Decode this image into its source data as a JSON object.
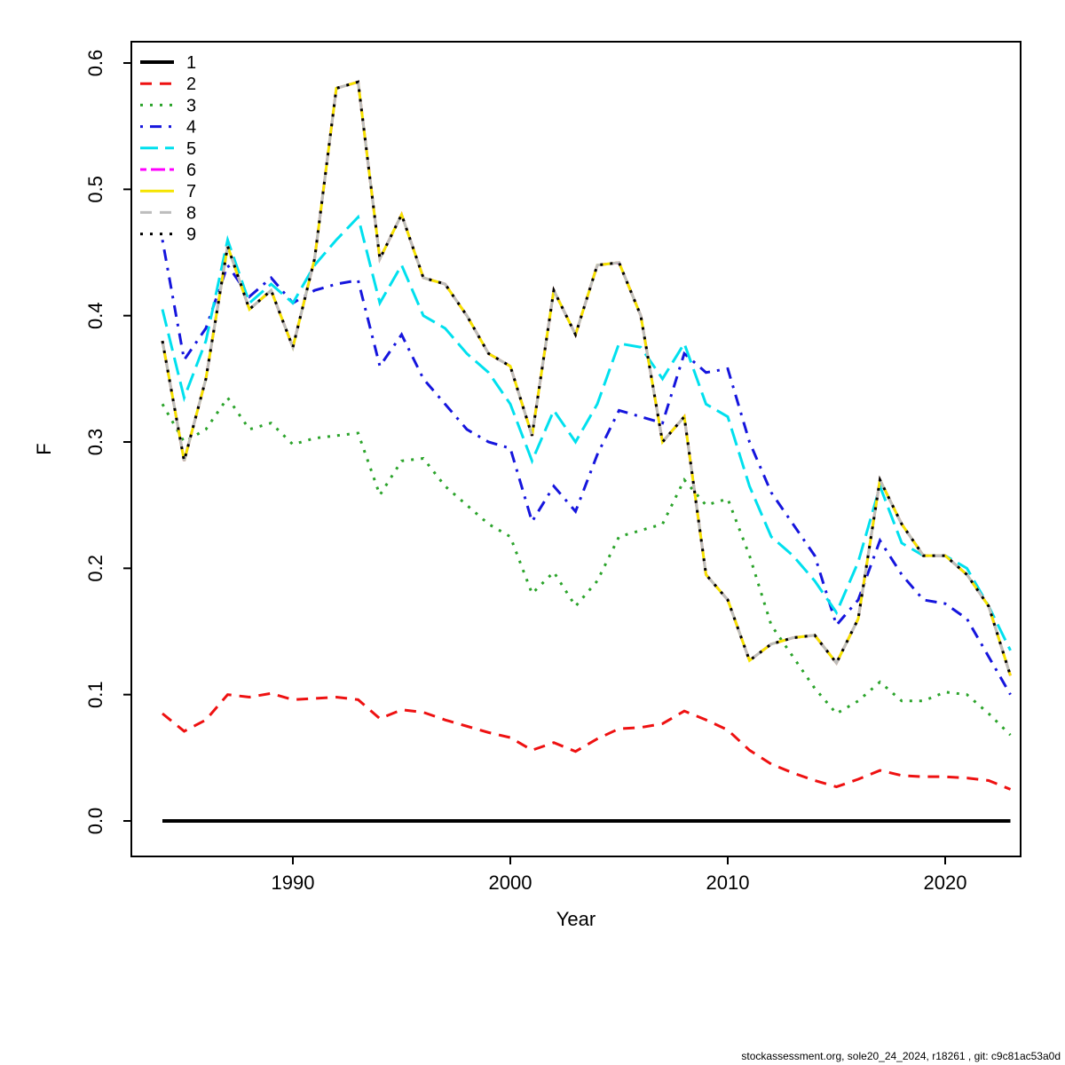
{
  "page": {
    "background": "#ffffff",
    "footer": "stockassessment.org, sole20_24_2024, r18261 , git: c9c81ac53a0d"
  },
  "chart_data": {
    "type": "line",
    "title": "",
    "xlabel": "Year",
    "ylabel": "F",
    "x": [
      1984,
      1985,
      1986,
      1987,
      1988,
      1989,
      1990,
      1991,
      1992,
      1993,
      1994,
      1995,
      1996,
      1997,
      1998,
      1999,
      2000,
      2001,
      2002,
      2003,
      2004,
      2005,
      2006,
      2007,
      2008,
      2009,
      2010,
      2011,
      2012,
      2013,
      2014,
      2015,
      2016,
      2017,
      2018,
      2019,
      2020,
      2021,
      2022,
      2023
    ],
    "xticks": [
      1990,
      2000,
      2010,
      2020
    ],
    "yticks": [
      0.0,
      0.1,
      0.2,
      0.3,
      0.4,
      0.5,
      0.6
    ],
    "ylim": [
      0,
      0.6
    ],
    "grid": false,
    "legend_position": "top-left",
    "legend_border": false,
    "series": [
      {
        "name": "1",
        "color": "#000000",
        "linetype": "solid",
        "width": 4,
        "values": [
          0,
          0,
          0,
          0,
          0,
          0,
          0,
          0,
          0,
          0,
          0,
          0,
          0,
          0,
          0,
          0,
          0,
          0,
          0,
          0,
          0,
          0,
          0,
          0,
          0,
          0,
          0,
          0,
          0,
          0,
          0,
          0,
          0,
          0,
          0,
          0,
          0,
          0,
          0,
          0
        ]
      },
      {
        "name": "2",
        "color": "#ee1111",
        "linetype": "dashed",
        "width": 3,
        "values": [
          0.085,
          0.071,
          0.08,
          0.1,
          0.098,
          0.101,
          0.096,
          0.097,
          0.098,
          0.096,
          0.081,
          0.088,
          0.086,
          0.08,
          0.075,
          0.07,
          0.066,
          0.056,
          0.062,
          0.055,
          0.065,
          0.073,
          0.074,
          0.077,
          0.087,
          0.08,
          0.072,
          0.056,
          0.045,
          0.038,
          0.032,
          0.027,
          0.033,
          0.04,
          0.036,
          0.035,
          0.035,
          0.034,
          0.032,
          0.025
        ]
      },
      {
        "name": "3",
        "color": "#2aa32a",
        "linetype": "dotted",
        "width": 3,
        "values": [
          0.33,
          0.3,
          0.31,
          0.335,
          0.31,
          0.315,
          0.298,
          0.303,
          0.305,
          0.307,
          0.258,
          0.285,
          0.287,
          0.265,
          0.25,
          0.235,
          0.225,
          0.18,
          0.197,
          0.17,
          0.19,
          0.225,
          0.23,
          0.235,
          0.27,
          0.25,
          0.255,
          0.21,
          0.155,
          0.13,
          0.105,
          0.085,
          0.095,
          0.11,
          0.095,
          0.095,
          0.102,
          0.1,
          0.085,
          0.068
        ]
      },
      {
        "name": "4",
        "color": "#1515dd",
        "linetype": "dotdash",
        "width": 3,
        "values": [
          0.46,
          0.365,
          0.39,
          0.44,
          0.415,
          0.43,
          0.41,
          0.42,
          0.425,
          0.428,
          0.36,
          0.385,
          0.35,
          0.33,
          0.31,
          0.3,
          0.295,
          0.237,
          0.265,
          0.245,
          0.29,
          0.325,
          0.32,
          0.315,
          0.37,
          0.355,
          0.358,
          0.3,
          0.26,
          0.235,
          0.21,
          0.155,
          0.175,
          0.222,
          0.195,
          0.175,
          0.172,
          0.16,
          0.13,
          0.1
        ]
      },
      {
        "name": "5",
        "color": "#00e0ee",
        "linetype": "longdash",
        "width": 3,
        "values": [
          0.405,
          0.335,
          0.38,
          0.46,
          0.41,
          0.425,
          0.41,
          0.44,
          0.46,
          0.478,
          0.41,
          0.44,
          0.4,
          0.39,
          0.37,
          0.355,
          0.33,
          0.285,
          0.325,
          0.3,
          0.33,
          0.378,
          0.375,
          0.35,
          0.378,
          0.33,
          0.32,
          0.265,
          0.225,
          0.21,
          0.19,
          0.165,
          0.205,
          0.265,
          0.22,
          0.21,
          0.21,
          0.2,
          0.17,
          0.135
        ]
      },
      {
        "name": "6",
        "color": "#ff00ff",
        "linetype": "twodash",
        "width": 3,
        "values": [
          0.38,
          0.285,
          0.35,
          0.455,
          0.405,
          0.42,
          0.375,
          0.445,
          0.58,
          0.585,
          0.445,
          0.48,
          0.43,
          0.425,
          0.4,
          0.37,
          0.36,
          0.305,
          0.42,
          0.385,
          0.44,
          0.442,
          0.4,
          0.3,
          0.32,
          0.195,
          0.175,
          0.127,
          0.14,
          0.145,
          0.147,
          0.125,
          0.16,
          0.27,
          0.235,
          0.21,
          0.21,
          0.195,
          0.17,
          0.115
        ]
      },
      {
        "name": "7",
        "color": "#f5e400",
        "linetype": "solid",
        "width": 3,
        "values": [
          0.38,
          0.285,
          0.35,
          0.455,
          0.405,
          0.42,
          0.375,
          0.445,
          0.58,
          0.585,
          0.445,
          0.48,
          0.43,
          0.425,
          0.4,
          0.37,
          0.36,
          0.305,
          0.42,
          0.385,
          0.44,
          0.442,
          0.4,
          0.3,
          0.32,
          0.195,
          0.175,
          0.127,
          0.14,
          0.145,
          0.147,
          0.125,
          0.16,
          0.27,
          0.235,
          0.21,
          0.21,
          0.195,
          0.17,
          0.115
        ]
      },
      {
        "name": "8",
        "color": "#bdbdbd",
        "linetype": "dashed",
        "width": 3,
        "values": [
          0.38,
          0.285,
          0.35,
          0.455,
          0.405,
          0.42,
          0.375,
          0.445,
          0.58,
          0.585,
          0.445,
          0.48,
          0.43,
          0.425,
          0.4,
          0.37,
          0.36,
          0.305,
          0.42,
          0.385,
          0.44,
          0.442,
          0.4,
          0.3,
          0.32,
          0.195,
          0.175,
          0.127,
          0.14,
          0.145,
          0.147,
          0.125,
          0.16,
          0.27,
          0.235,
          0.21,
          0.21,
          0.195,
          0.17,
          0.115
        ]
      },
      {
        "name": "9",
        "color": "#000000",
        "linetype": "dotted",
        "width": 3,
        "values": [
          0.38,
          0.285,
          0.35,
          0.455,
          0.405,
          0.42,
          0.375,
          0.445,
          0.58,
          0.585,
          0.445,
          0.48,
          0.43,
          0.425,
          0.4,
          0.37,
          0.36,
          0.305,
          0.42,
          0.385,
          0.44,
          0.442,
          0.4,
          0.3,
          0.32,
          0.195,
          0.175,
          0.127,
          0.14,
          0.145,
          0.147,
          0.125,
          0.16,
          0.27,
          0.235,
          0.21,
          0.21,
          0.195,
          0.17,
          0.115
        ]
      }
    ]
  }
}
